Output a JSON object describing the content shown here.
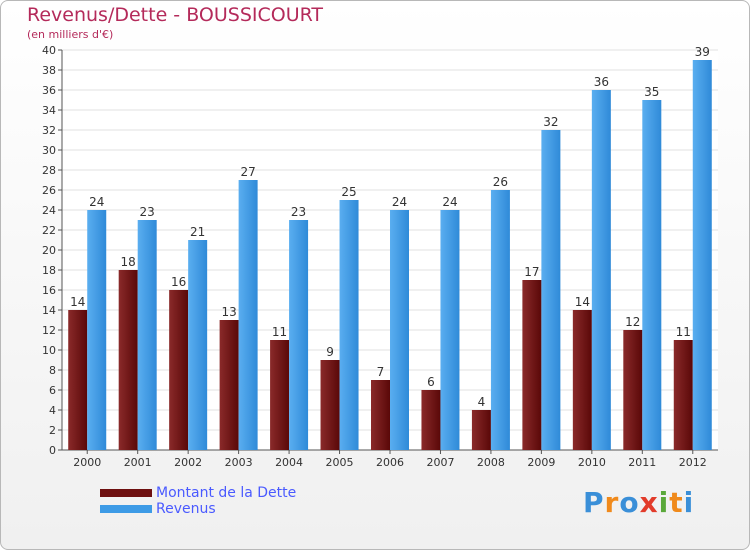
{
  "chart_data": {
    "type": "bar",
    "title": "Revenus/Dette - BOUSSICOURT",
    "subtitle": "(en milliers d'€)",
    "categories": [
      "2000",
      "2001",
      "2002",
      "2003",
      "2004",
      "2005",
      "2006",
      "2007",
      "2008",
      "2009",
      "2010",
      "2011",
      "2012"
    ],
    "series": [
      {
        "name": "Montant de la Dette",
        "color": "#6e1010",
        "values": [
          14,
          18,
          16,
          13,
          11,
          9,
          7,
          6,
          4,
          17,
          14,
          12,
          11
        ]
      },
      {
        "name": "Revenus",
        "color": "#3d9be6",
        "values": [
          24,
          23,
          21,
          27,
          23,
          25,
          24,
          24,
          26,
          32,
          36,
          35,
          39
        ]
      }
    ],
    "ylim": [
      0,
      40
    ],
    "yticks": [
      0,
      2,
      4,
      6,
      8,
      10,
      12,
      14,
      16,
      18,
      20,
      22,
      24,
      26,
      28,
      30,
      32,
      34,
      36,
      38,
      40
    ],
    "grid": true,
    "legend": "bottom-left"
  },
  "logo": {
    "text": "Proxiti",
    "letters": [
      {
        "ch": "P",
        "color": "#3a8fd8"
      },
      {
        "ch": "r",
        "color": "#f08a1c"
      },
      {
        "ch": "o",
        "color": "#3a8fd8"
      },
      {
        "ch": "x",
        "color": "#e23b2a"
      },
      {
        "ch": "i",
        "color": "#5aa83a"
      },
      {
        "ch": "t",
        "color": "#f08a1c"
      },
      {
        "ch": "i",
        "color": "#3a8fd8"
      }
    ]
  }
}
